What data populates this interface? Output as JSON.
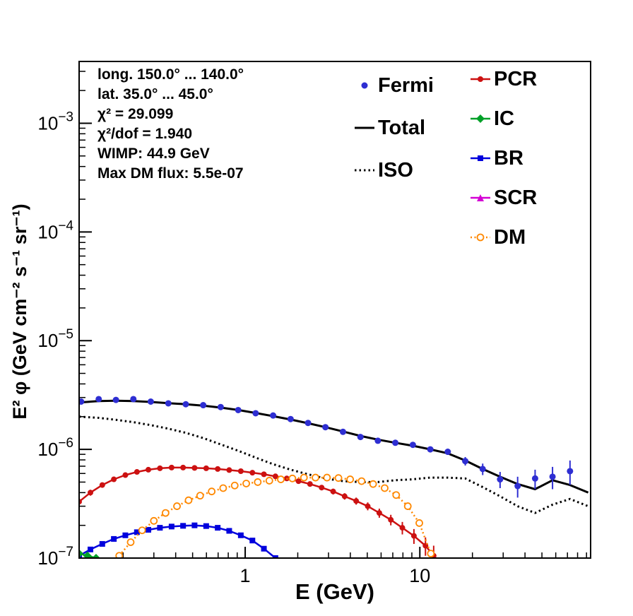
{
  "annotations": [
    "long. 150.0° ... 140.0°",
    "lat. 35.0° ... 45.0°",
    "χ² = 29.099",
    "χ²/dof = 1.940",
    "WIMP: 44.9 GeV",
    "Max DM flux: 5.5e-07"
  ],
  "chart_data": {
    "type": "line",
    "title": "",
    "xlabel": "E (GeV)",
    "ylabel": "E² φ (GeV cm⁻² s⁻¹ sr⁻¹)",
    "xscale": "log",
    "yscale": "log",
    "xlim": [
      0.112,
      95
    ],
    "ylim": [
      1e-07,
      0.0037
    ],
    "grid": false,
    "legend_position": "top",
    "xticks": [
      {
        "value": 1,
        "label": "1"
      },
      {
        "value": 10,
        "label": "10"
      }
    ],
    "yticks": [
      {
        "value": 0.001,
        "base": "10",
        "exp": "−3"
      },
      {
        "value": 0.0001,
        "base": "10",
        "exp": "−4"
      },
      {
        "value": 1e-05,
        "base": "10",
        "exp": "−5"
      },
      {
        "value": 1e-06,
        "base": "10",
        "exp": "−6"
      },
      {
        "value": 1e-07,
        "base": "10",
        "exp": "−7"
      }
    ],
    "legend": {
      "col1": [
        {
          "label": "Fermi",
          "series": "Fermi"
        },
        {
          "label": "Total",
          "series": "Total"
        },
        {
          "label": "ISO",
          "series": "ISO"
        }
      ],
      "col2": [
        {
          "label": "PCR",
          "series": "PCR"
        },
        {
          "label": "IC",
          "series": "IC"
        },
        {
          "label": "BR",
          "series": "BR"
        },
        {
          "label": "SCR",
          "series": "SCR"
        },
        {
          "label": "DM",
          "series": "DM"
        }
      ]
    },
    "series": [
      {
        "name": "ISO",
        "color": "#000000",
        "line": "dotted",
        "dash": "2.5 4",
        "width": 3,
        "marker": "none",
        "x": [
          0.112,
          0.145,
          0.182,
          0.229,
          0.288,
          0.363,
          0.457,
          0.575,
          0.724,
          0.912,
          1.148,
          1.445,
          1.82,
          2.29,
          2.88,
          3.63,
          4.57,
          5.75,
          7.24,
          9.12,
          11.48,
          14.45,
          18.2,
          22.9,
          28.8,
          36.3,
          45.7,
          57.5,
          72.4,
          92
        ],
        "y": [
          2e-06,
          1.95e-06,
          1.87e-06,
          1.78e-06,
          1.67e-06,
          1.55e-06,
          1.42e-06,
          1.27e-06,
          1.11e-06,
          9.7e-07,
          8.4e-07,
          7.3e-07,
          6.5e-07,
          5.9e-07,
          5.4e-07,
          5.1e-07,
          5e-07,
          5e-07,
          5.2e-07,
          5.3e-07,
          5.5e-07,
          5.5e-07,
          5.4e-07,
          4.5e-07,
          3.7e-07,
          3e-07,
          2.6e-07,
          3.1e-07,
          3.5e-07,
          3e-07
        ]
      },
      {
        "name": "BR",
        "color": "#0000dd",
        "line": "solid",
        "width": 2.5,
        "marker": "square",
        "msize": 4,
        "x": [
          0.112,
          0.13,
          0.152,
          0.177,
          0.206,
          0.24,
          0.279,
          0.325,
          0.379,
          0.441,
          0.513,
          0.598,
          0.696,
          0.81,
          0.944,
          1.1,
          1.28,
          1.49
        ],
        "y": [
          1.05e-07,
          1.2e-07,
          1.35e-07,
          1.5e-07,
          1.62e-07,
          1.73e-07,
          1.82e-07,
          1.9e-07,
          1.95e-07,
          1.98e-07,
          2e-07,
          1.97e-07,
          1.9e-07,
          1.78e-07,
          1.62e-07,
          1.45e-07,
          1.22e-07,
          1e-07
        ]
      },
      {
        "name": "IC",
        "color": "#00a028",
        "line": "solid",
        "width": 2.5,
        "marker": "diamond",
        "msize": 5,
        "x": [
          0.112,
          0.125,
          0.14
        ],
        "y": [
          1.1e-07,
          1.05e-07,
          1e-07
        ]
      },
      {
        "name": "SCR",
        "color": "#d400d4",
        "line": "solid",
        "width": 2.5,
        "marker": "triangle",
        "msize": 5,
        "x": [],
        "y": []
      },
      {
        "name": "PCR",
        "color": "#cc1111",
        "line": "solid",
        "width": 2.5,
        "marker": "circle",
        "msize": 4,
        "yerr": 2.5e-08,
        "x": [
          0.112,
          0.13,
          0.152,
          0.177,
          0.206,
          0.24,
          0.279,
          0.325,
          0.379,
          0.441,
          0.513,
          0.598,
          0.696,
          0.81,
          0.944,
          1.1,
          1.28,
          1.49,
          1.73,
          2.02,
          2.35,
          2.74,
          3.19,
          3.71,
          4.32,
          5.03,
          5.86,
          6.82,
          7.94,
          9.25,
          10.77,
          12.0
        ],
        "y": [
          3.3e-07,
          4e-07,
          4.7e-07,
          5.3e-07,
          5.8e-07,
          6.2e-07,
          6.5e-07,
          6.7e-07,
          6.8e-07,
          6.8e-07,
          6.75e-07,
          6.7e-07,
          6.6e-07,
          6.45e-07,
          6.3e-07,
          6.1e-07,
          5.9e-07,
          5.65e-07,
          5.4e-07,
          5.1e-07,
          4.8e-07,
          4.45e-07,
          4.1e-07,
          3.7e-07,
          3.35e-07,
          3e-07,
          2.6e-07,
          2.25e-07,
          1.9e-07,
          1.6e-07,
          1.3e-07,
          1.05e-07
        ]
      },
      {
        "name": "DM",
        "color": "#ff8800",
        "line": "dotted",
        "dash": "2 3.5",
        "width": 2.5,
        "marker": "circle-open",
        "msize": 4.5,
        "x": [
          0.19,
          0.221,
          0.257,
          0.3,
          0.35,
          0.407,
          0.474,
          0.552,
          0.643,
          0.748,
          0.871,
          1.014,
          1.18,
          1.375,
          1.6,
          1.863,
          2.17,
          2.526,
          2.94,
          3.42,
          3.99,
          4.64,
          5.4,
          6.29,
          7.32,
          8.53,
          9.93,
          11.56
        ],
        "y": [
          1.05e-07,
          1.4e-07,
          1.8e-07,
          2.2e-07,
          2.6e-07,
          3e-07,
          3.4e-07,
          3.75e-07,
          4.1e-07,
          4.4e-07,
          4.65e-07,
          4.85e-07,
          5e-07,
          5.15e-07,
          5.3e-07,
          5.4e-07,
          5.5e-07,
          5.5e-07,
          5.5e-07,
          5.45e-07,
          5.3e-07,
          5.1e-07,
          4.8e-07,
          4.4e-07,
          3.8e-07,
          3e-07,
          2.1e-07,
          1.1e-07
        ]
      },
      {
        "name": "Total",
        "color": "#000000",
        "line": "solid",
        "width": 3,
        "marker": "none",
        "x": [
          0.112,
          0.145,
          0.182,
          0.229,
          0.288,
          0.363,
          0.457,
          0.575,
          0.724,
          0.912,
          1.148,
          1.445,
          1.82,
          2.29,
          2.88,
          3.63,
          4.57,
          5.75,
          7.24,
          9.12,
          11.48,
          14.45,
          18.2,
          22.9,
          28.8,
          36.3,
          45.7,
          57.5,
          72.4,
          92
        ],
        "y": [
          2.7e-06,
          2.78e-06,
          2.8e-06,
          2.78e-06,
          2.73e-06,
          2.66e-06,
          2.6e-06,
          2.52e-06,
          2.42e-06,
          2.3e-06,
          2.16e-06,
          2.02e-06,
          1.88e-06,
          1.74e-06,
          1.6e-06,
          1.46e-06,
          1.33e-06,
          1.23e-06,
          1.15e-06,
          1.08e-06,
          1e-06,
          9.2e-07,
          7.9e-07,
          6.6e-07,
          5.6e-07,
          4.8e-07,
          4.3e-07,
          5.2e-07,
          4.7e-07,
          4e-07
        ]
      },
      {
        "name": "Fermi",
        "color": "#2e2ed2",
        "line": "none",
        "marker": "circle",
        "msize": 4.5,
        "x": [
          0.115,
          0.145,
          0.182,
          0.229,
          0.288,
          0.363,
          0.457,
          0.575,
          0.724,
          0.912,
          1.148,
          1.445,
          1.82,
          2.29,
          2.88,
          3.63,
          4.57,
          5.75,
          7.24,
          9.12,
          11.48,
          14.45,
          18.2,
          22.9,
          28.8,
          36.3,
          45.7,
          57.5,
          72.4
        ],
        "y": [
          2.75e-06,
          2.9e-06,
          2.85e-06,
          2.9e-06,
          2.75e-06,
          2.65e-06,
          2.6e-06,
          2.55e-06,
          2.45e-06,
          2.3e-06,
          2.15e-06,
          2.05e-06,
          1.9e-06,
          1.75e-06,
          1.6e-06,
          1.45e-06,
          1.3e-06,
          1.2e-06,
          1.15e-06,
          1.1e-06,
          1e-06,
          9.5e-07,
          7.8e-07,
          6.6e-07,
          5.3e-07,
          4.6e-07,
          5.4e-07,
          5.6e-07,
          6.3e-07
        ],
        "yerr": [
          3e-08,
          3e-08,
          3e-08,
          3e-08,
          3e-08,
          3e-08,
          3e-08,
          3e-08,
          3e-08,
          3e-08,
          3e-08,
          3e-08,
          3e-08,
          3e-08,
          3.5e-08,
          3.5e-08,
          4e-08,
          4e-08,
          4.5e-08,
          5e-08,
          5.5e-08,
          6e-08,
          7e-08,
          8e-08,
          9e-08,
          1e-07,
          1.1e-07,
          1.3e-07,
          1.6e-07
        ]
      }
    ]
  }
}
